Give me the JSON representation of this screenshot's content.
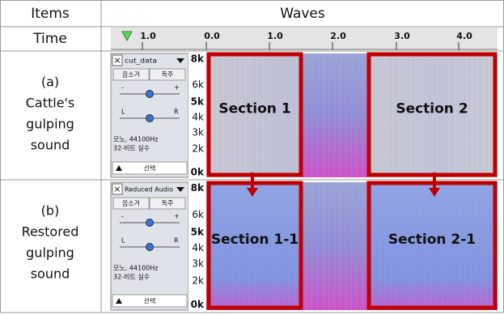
{
  "table": {
    "headers": [
      "Items",
      "Waves"
    ],
    "time_row": {
      "label": "Time",
      "ticks": [
        "1.0",
        "0.0",
        "1.0",
        "2.0",
        "3.0",
        "4.0"
      ]
    },
    "rows": [
      {
        "label_lines": [
          "(a)",
          "Cattle's",
          "gulping",
          "sound"
        ],
        "track": {
          "name": "cut_data",
          "buttons": [
            "음소거",
            "독주"
          ],
          "gain": [
            "-",
            "+"
          ],
          "pan": [
            "L",
            "R"
          ],
          "info": [
            "모노, 44100Hz",
            "32-비트 실수"
          ],
          "select": "선택"
        },
        "freq_labels": [
          "8k",
          "6k",
          "5k",
          "4k",
          "3k",
          "2k",
          "0k"
        ],
        "sections": [
          "Section 1",
          "Section 2"
        ]
      },
      {
        "label_lines": [
          "(b)",
          "Restored",
          "gulping",
          "sound"
        ],
        "track": {
          "name": "Reduced Audio",
          "buttons": [
            "음소거",
            "독주"
          ],
          "gain": [
            "-",
            "+"
          ],
          "pan": [
            "L",
            "R"
          ],
          "info": [
            "모노, 44100Hz",
            "32-비트 실수"
          ],
          "select": "선택"
        },
        "freq_labels": [
          "8k",
          "6k",
          "5k",
          "4k",
          "3k",
          "2k",
          "0k"
        ],
        "sections": [
          "Section 1-1",
          "Section 2-1"
        ]
      }
    ]
  }
}
